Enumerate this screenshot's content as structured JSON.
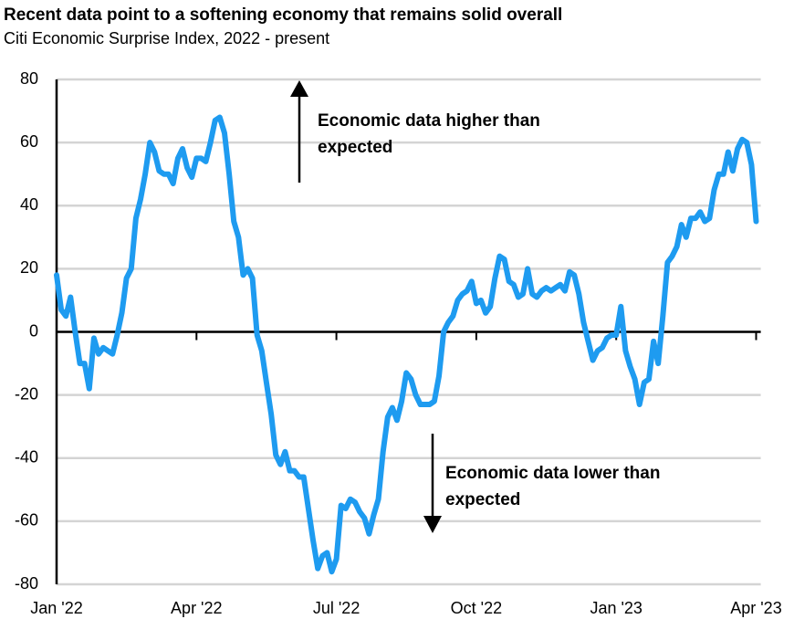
{
  "chart_data": {
    "type": "line",
    "title": "Recent data point to a softening economy that remains solid overall",
    "subtitle": "Citi Economic Surprise Index, 2022 - present",
    "annotations": [
      [
        "Economic data higher than",
        "expected"
      ],
      [
        "Economic data lower than",
        "expected"
      ]
    ],
    "x": [
      0,
      0.1,
      0.2,
      0.3,
      0.4,
      0.5,
      0.6,
      0.7,
      0.8,
      0.9,
      1,
      1.1,
      1.2,
      1.3,
      1.4,
      1.5,
      1.6,
      1.7,
      1.8,
      1.9,
      2,
      2.1,
      2.2,
      2.3,
      2.4,
      2.5,
      2.6,
      2.7,
      2.8,
      2.9,
      3,
      3.1,
      3.2,
      3.3,
      3.4,
      3.5,
      3.6,
      3.7,
      3.8,
      3.9,
      4,
      4.1,
      4.2,
      4.3,
      4.4,
      4.5,
      4.6,
      4.7,
      4.8,
      4.9,
      5,
      5.1,
      5.2,
      5.3,
      5.4,
      5.5,
      5.6,
      5.7,
      5.8,
      5.9,
      6,
      6.1,
      6.2,
      6.3,
      6.4,
      6.5,
      6.6,
      6.7,
      6.8,
      6.9,
      7,
      7.1,
      7.2,
      7.3,
      7.4,
      7.5,
      7.6,
      7.7,
      7.8,
      7.9,
      8,
      8.1,
      8.2,
      8.3,
      8.4,
      8.5,
      8.6,
      8.7,
      8.8,
      8.9,
      9,
      9.1,
      9.2,
      9.3,
      9.4,
      9.5,
      9.6,
      9.7,
      9.8,
      9.9,
      10,
      10.1,
      10.2,
      10.3,
      10.4,
      10.5,
      10.6,
      10.7,
      10.8,
      10.9,
      11,
      11.1,
      11.2,
      11.3,
      11.4,
      11.5,
      11.6,
      11.7,
      11.8,
      11.9,
      12,
      12.1,
      12.2,
      12.3,
      12.4,
      12.5,
      12.6,
      12.7,
      12.8,
      12.9,
      13,
      13.1,
      13.2,
      13.3,
      13.4,
      13.5,
      13.6,
      13.7,
      13.8,
      13.9,
      14,
      14.1,
      14.2,
      14.3,
      14.4,
      14.5,
      14.6,
      14.7,
      14.8,
      14.9,
      15
    ],
    "series": [
      {
        "name": "Citi Economic Surprise Index",
        "color": "#1e9bf0",
        "values": [
          18,
          7,
          5,
          11,
          0,
          -10,
          -10,
          -18,
          -2,
          -7,
          -5,
          -6,
          -7,
          -1,
          6,
          17,
          20,
          36,
          42,
          50,
          60,
          57,
          51,
          50,
          50,
          47,
          55,
          58,
          52,
          49,
          55,
          55,
          54,
          60,
          67,
          68,
          63,
          50,
          35,
          30,
          18,
          20,
          17,
          -1,
          -6,
          -16,
          -26,
          -39,
          -42,
          -38,
          -44,
          -44,
          -46,
          -46,
          -56,
          -66,
          -75,
          -71,
          -70,
          -76,
          -72,
          -55,
          -56,
          -53,
          -54,
          -57,
          -59,
          -64,
          -58,
          -53,
          -38,
          -27,
          -24,
          -28,
          -22,
          -13,
          -15,
          -20,
          -23,
          -23,
          -23,
          -22,
          -14,
          0,
          3,
          5,
          10,
          12,
          13,
          16,
          9,
          10,
          6,
          8,
          17,
          24,
          23,
          16,
          15,
          11,
          12,
          20,
          12,
          11,
          13,
          14,
          13,
          14,
          15,
          13,
          19,
          18,
          12,
          3,
          -3,
          -9,
          -6,
          -5,
          -2,
          -1,
          -1,
          8,
          -6,
          -11,
          -15,
          -23,
          -16,
          -15,
          -3,
          -10,
          5,
          22,
          24,
          27,
          34,
          30,
          36,
          36,
          38,
          35,
          36,
          45,
          50,
          50,
          57,
          51,
          58,
          61,
          60,
          53,
          35
        ]
      }
    ],
    "xlim": [
      0,
      15.1
    ],
    "xticks": [
      {
        "value": 0,
        "label": "Jan '22"
      },
      {
        "value": 3,
        "label": "Apr '22"
      },
      {
        "value": 6,
        "label": "Jul '22"
      },
      {
        "value": 9,
        "label": "Oct '22"
      },
      {
        "value": 12,
        "label": "Jan '23"
      },
      {
        "value": 15,
        "label": "Apr '23"
      }
    ],
    "ylim": [
      -80,
      80
    ],
    "yticks": [
      -80,
      -60,
      -40,
      -20,
      0,
      20,
      40,
      60,
      80
    ],
    "grid": true
  }
}
